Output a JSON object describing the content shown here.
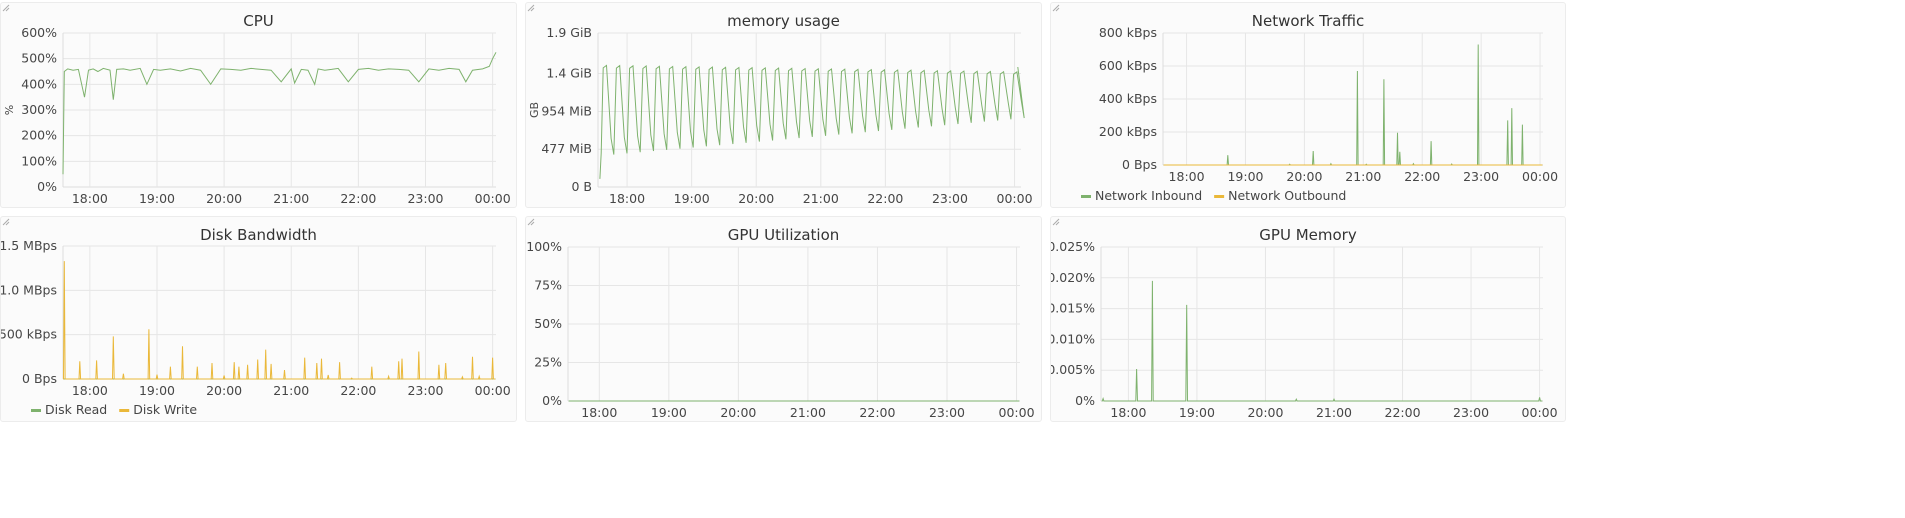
{
  "colors": {
    "green": "#7eb26d",
    "yellow": "#eab839"
  },
  "chart_data": [
    {
      "id": "cpu",
      "type": "line",
      "title": "CPU",
      "ylabel": "%",
      "ylim": [
        0,
        600
      ],
      "yunit": "%",
      "yticks": [
        {
          "v": 0,
          "label": "0%"
        },
        {
          "v": 100,
          "label": "100%"
        },
        {
          "v": 200,
          "label": "200%"
        },
        {
          "v": 300,
          "label": "300%"
        },
        {
          "v": 400,
          "label": "400%"
        },
        {
          "v": 500,
          "label": "500%"
        },
        {
          "v": 600,
          "label": "600%"
        }
      ],
      "xlim": [
        17.6,
        24.05
      ],
      "xticks": [
        {
          "v": 18,
          "label": "18:00"
        },
        {
          "v": 19,
          "label": "19:00"
        },
        {
          "v": 20,
          "label": "20:00"
        },
        {
          "v": 21,
          "label": "21:00"
        },
        {
          "v": 22,
          "label": "22:00"
        },
        {
          "v": 23,
          "label": "23:00"
        },
        {
          "v": 24,
          "label": "00:00"
        }
      ],
      "series": [
        {
          "color_key": "green",
          "x": [
            17.6,
            17.62,
            17.67,
            17.75,
            17.83,
            17.92,
            17.98,
            18.05,
            18.12,
            18.2,
            18.3,
            18.35,
            18.4,
            18.5,
            18.6,
            18.75,
            18.85,
            18.95,
            19.05,
            19.2,
            19.35,
            19.5,
            19.65,
            19.8,
            19.95,
            20.1,
            20.25,
            20.4,
            20.55,
            20.7,
            20.85,
            21.0,
            21.05,
            21.15,
            21.25,
            21.35,
            21.4,
            21.5,
            21.6,
            21.7,
            21.85,
            22.0,
            22.15,
            22.3,
            22.45,
            22.6,
            22.75,
            22.9,
            23.05,
            23.2,
            23.35,
            23.5,
            23.6,
            23.7,
            23.85,
            23.95,
            24.0,
            24.05
          ],
          "values": [
            50,
            450,
            460,
            455,
            458,
            350,
            455,
            460,
            450,
            462,
            455,
            340,
            458,
            460,
            455,
            462,
            400,
            458,
            455,
            460,
            452,
            462,
            455,
            400,
            460,
            458,
            455,
            462,
            458,
            455,
            410,
            460,
            405,
            458,
            455,
            400,
            460,
            455,
            458,
            462,
            410,
            458,
            462,
            455,
            460,
            458,
            455,
            410,
            460,
            455,
            462,
            458,
            410,
            455,
            460,
            470,
            500,
            525
          ]
        }
      ]
    },
    {
      "id": "memory",
      "type": "line",
      "title": "memory usage",
      "ylabel": "GB",
      "ylim": [
        0,
        1.9
      ],
      "yticks": [
        {
          "v": 0,
          "label": "0 B"
        },
        {
          "v": 0.466,
          "label": "477 MiB"
        },
        {
          "v": 0.932,
          "label": "954 MiB"
        },
        {
          "v": 1.4,
          "label": "1.4 GiB"
        },
        {
          "v": 1.9,
          "label": "1.9 GiB"
        }
      ],
      "xlim": [
        17.55,
        24.1
      ],
      "xticks": [
        {
          "v": 18,
          "label": "18:00"
        },
        {
          "v": 19,
          "label": "19:00"
        },
        {
          "v": 20,
          "label": "20:00"
        },
        {
          "v": 21,
          "label": "21:00"
        },
        {
          "v": 22,
          "label": "22:00"
        },
        {
          "v": 23,
          "label": "23:00"
        },
        {
          "v": 24,
          "label": "00:00"
        }
      ],
      "series": [
        {
          "color_key": "green",
          "x": [],
          "values": []
        }
      ],
      "oscillation": {
        "start": 17.58,
        "end": 24.05,
        "period": 0.205,
        "baseline_start": 0.1,
        "peaks_start": 1.5,
        "peaks_end": 1.42,
        "troughs_start": 0.4,
        "troughs_end": 0.85
      }
    },
    {
      "id": "network",
      "type": "line",
      "title": "Network Traffic",
      "ylabel": "",
      "ylim": [
        0,
        800
      ],
      "yticks": [
        {
          "v": 0,
          "label": "0 Bps"
        },
        {
          "v": 200,
          "label": "200 kBps"
        },
        {
          "v": 400,
          "label": "400 kBps"
        },
        {
          "v": 600,
          "label": "600 kBps"
        },
        {
          "v": 800,
          "label": "800 kBps"
        }
      ],
      "xlim": [
        17.6,
        24.05
      ],
      "xticks": [
        {
          "v": 18,
          "label": "18:00"
        },
        {
          "v": 19,
          "label": "19:00"
        },
        {
          "v": 20,
          "label": "20:00"
        },
        {
          "v": 21,
          "label": "21:00"
        },
        {
          "v": 22,
          "label": "22:00"
        },
        {
          "v": 23,
          "label": "23:00"
        },
        {
          "v": 24,
          "label": "00:00"
        }
      ],
      "series": [
        {
          "name": "Network Inbound",
          "color_key": "green",
          "spikes": [
            [
              18.7,
              60
            ],
            [
              19.75,
              5
            ],
            [
              20.15,
              85
            ],
            [
              20.45,
              8
            ],
            [
              20.9,
              570
            ],
            [
              21.05,
              5
            ],
            [
              21.35,
              520
            ],
            [
              21.58,
              195
            ],
            [
              21.62,
              80
            ],
            [
              21.85,
              8
            ],
            [
              22.15,
              145
            ],
            [
              22.5,
              6
            ],
            [
              22.95,
              730
            ],
            [
              23.45,
              270
            ],
            [
              23.52,
              345
            ],
            [
              23.7,
              245
            ]
          ]
        },
        {
          "name": "Network Outbound",
          "color_key": "yellow",
          "spikes": []
        }
      ],
      "legend": "bottom-left"
    },
    {
      "id": "disk",
      "type": "line",
      "title": "Disk Bandwidth",
      "ylabel": "",
      "ylim": [
        0,
        1500
      ],
      "yticks": [
        {
          "v": 0,
          "label": "0 Bps"
        },
        {
          "v": 500,
          "label": "500 kBps"
        },
        {
          "v": 1000,
          "label": "1.0 MBps"
        },
        {
          "v": 1500,
          "label": "1.5 MBps"
        }
      ],
      "xlim": [
        17.6,
        24.05
      ],
      "xticks": [
        {
          "v": 18,
          "label": "18:00"
        },
        {
          "v": 19,
          "label": "19:00"
        },
        {
          "v": 20,
          "label": "20:00"
        },
        {
          "v": 21,
          "label": "21:00"
        },
        {
          "v": 22,
          "label": "22:00"
        },
        {
          "v": 23,
          "label": "23:00"
        },
        {
          "v": 24,
          "label": "00:00"
        }
      ],
      "series": [
        {
          "name": "Disk Read",
          "color_key": "green",
          "spikes": []
        },
        {
          "name": "Disk Write",
          "color_key": "yellow",
          "spikes": [
            [
              17.62,
              1330
            ],
            [
              17.85,
              200
            ],
            [
              18.1,
              210
            ],
            [
              18.35,
              480
            ],
            [
              18.5,
              60
            ],
            [
              18.88,
              560
            ],
            [
              19.0,
              50
            ],
            [
              19.2,
              140
            ],
            [
              19.38,
              370
            ],
            [
              19.6,
              140
            ],
            [
              19.82,
              180
            ],
            [
              20.0,
              40
            ],
            [
              20.15,
              190
            ],
            [
              20.22,
              140
            ],
            [
              20.35,
              160
            ],
            [
              20.5,
              220
            ],
            [
              20.62,
              330
            ],
            [
              20.7,
              170
            ],
            [
              20.9,
              100
            ],
            [
              21.2,
              240
            ],
            [
              21.38,
              180
            ],
            [
              21.45,
              230
            ],
            [
              21.55,
              45
            ],
            [
              21.72,
              190
            ],
            [
              21.9,
              10
            ],
            [
              22.2,
              140
            ],
            [
              22.45,
              30
            ],
            [
              22.6,
              200
            ],
            [
              22.65,
              230
            ],
            [
              22.9,
              310
            ],
            [
              23.2,
              160
            ],
            [
              23.3,
              180
            ],
            [
              23.55,
              25
            ],
            [
              23.7,
              250
            ],
            [
              23.8,
              30
            ],
            [
              24.0,
              240
            ]
          ]
        }
      ],
      "legend": "bottom-left"
    },
    {
      "id": "gpu_util",
      "type": "line",
      "title": "GPU Utilization",
      "ylabel": "",
      "ylim": [
        0,
        100
      ],
      "yticks": [
        {
          "v": 0,
          "label": "0%"
        },
        {
          "v": 25,
          "label": "25%"
        },
        {
          "v": 50,
          "label": "50%"
        },
        {
          "v": 75,
          "label": "75%"
        },
        {
          "v": 100,
          "label": "100%"
        }
      ],
      "xlim": [
        17.55,
        24.05
      ],
      "xticks": [
        {
          "v": 18,
          "label": "18:00"
        },
        {
          "v": 19,
          "label": "19:00"
        },
        {
          "v": 20,
          "label": "20:00"
        },
        {
          "v": 21,
          "label": "21:00"
        },
        {
          "v": 22,
          "label": "22:00"
        },
        {
          "v": 23,
          "label": "23:00"
        },
        {
          "v": 24,
          "label": "00:00"
        }
      ],
      "series": [
        {
          "color_key": "green",
          "spikes": []
        }
      ]
    },
    {
      "id": "gpu_mem",
      "type": "line",
      "title": "GPU Memory",
      "ylabel": "",
      "ylim": [
        0,
        0.025
      ],
      "yticks": [
        {
          "v": 0,
          "label": "0%"
        },
        {
          "v": 0.005,
          "label": "0.005%"
        },
        {
          "v": 0.01,
          "label": "0.010%"
        },
        {
          "v": 0.015,
          "label": "0.015%"
        },
        {
          "v": 0.02,
          "label": "0.020%"
        },
        {
          "v": 0.025,
          "label": "0.025%"
        }
      ],
      "xlim": [
        17.6,
        24.05
      ],
      "xticks": [
        {
          "v": 18,
          "label": "18:00"
        },
        {
          "v": 19,
          "label": "19:00"
        },
        {
          "v": 20,
          "label": "20:00"
        },
        {
          "v": 21,
          "label": "21:00"
        },
        {
          "v": 22,
          "label": "22:00"
        },
        {
          "v": 23,
          "label": "23:00"
        },
        {
          "v": 24,
          "label": "00:00"
        }
      ],
      "series": [
        {
          "color_key": "green",
          "spikes": [
            [
              17.63,
              0.0004
            ],
            [
              18.12,
              0.0052
            ],
            [
              18.35,
              0.0195
            ],
            [
              18.85,
              0.0156
            ],
            [
              20.45,
              0.0003
            ],
            [
              21.0,
              0.0003
            ],
            [
              24.0,
              0.0006
            ]
          ]
        }
      ]
    }
  ]
}
